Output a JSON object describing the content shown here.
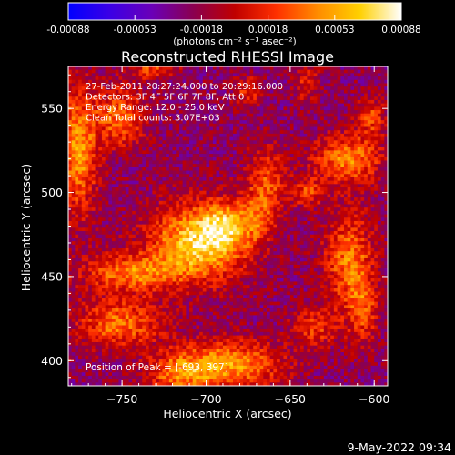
{
  "chart_data": {
    "type": "heatmap",
    "title": "Reconstructed RHESSI Image",
    "xlabel": "Heliocentric X (arcsec)",
    "ylabel": "Heliocentric Y (arcsec)",
    "xlim": [
      -782,
      -592
    ],
    "ylim": [
      385,
      575
    ],
    "x_ticks": [
      -750,
      -700,
      -650,
      -600
    ],
    "y_ticks": [
      400,
      450,
      500,
      550
    ],
    "colorbar": {
      "range": [
        -0.00088,
        0.00088
      ],
      "ticks": [
        "-0.00088",
        "-0.00053",
        "-0.00018",
        "0.00018",
        "0.00053",
        "0.00088"
      ],
      "unit_label": "(photons cm⁻² s⁻¹ asec⁻²)"
    },
    "annotations": [
      "27-Feb-2011 20:27:24.000 to 20:29:16.000",
      "Detectors: 3F 4F 5F 6F 7F 8F, Att 0",
      "Energy Range: 12.0 - 25.0 keV",
      "Clean     Total counts: 3.07E+03"
    ],
    "peak_label": "Position of Peak = [-693, 397]",
    "colormap": [
      "#0000ff",
      "#3b00e6",
      "#6a00b8",
      "#8a0050",
      "#c00000",
      "#ff3000",
      "#ff8c00",
      "#ffd000",
      "#ffffff"
    ],
    "sources": [
      {
        "x": -705,
        "y": 470,
        "sx": 20,
        "sy": 16,
        "amp": 0.00088
      },
      {
        "x": -690,
        "y": 480,
        "sx": 10,
        "sy": 10,
        "amp": 0.0005
      },
      {
        "x": -745,
        "y": 452,
        "sx": 20,
        "sy": 8,
        "amp": 0.0006
      },
      {
        "x": -752,
        "y": 422,
        "sx": 18,
        "sy": 10,
        "amp": 0.00058
      },
      {
        "x": -688,
        "y": 397,
        "sx": 22,
        "sy": 10,
        "amp": 0.00075
      },
      {
        "x": -717,
        "y": 392,
        "sx": 12,
        "sy": 8,
        "amp": 0.00045
      },
      {
        "x": -751,
        "y": 545,
        "sx": 10,
        "sy": 12,
        "amp": 0.0006
      },
      {
        "x": -776,
        "y": 525,
        "sx": 8,
        "sy": 26,
        "amp": 0.0007
      },
      {
        "x": -664,
        "y": 508,
        "sx": 8,
        "sy": 14,
        "amp": 0.00045
      },
      {
        "x": -670,
        "y": 485,
        "sx": 8,
        "sy": 10,
        "amp": 0.0004
      },
      {
        "x": -616,
        "y": 520,
        "sx": 14,
        "sy": 10,
        "amp": 0.00065
      },
      {
        "x": -602,
        "y": 545,
        "sx": 6,
        "sy": 8,
        "amp": 0.00045
      },
      {
        "x": -640,
        "y": 500,
        "sx": 8,
        "sy": 6,
        "amp": 0.0004
      },
      {
        "x": -615,
        "y": 460,
        "sx": 10,
        "sy": 20,
        "amp": 0.0006
      },
      {
        "x": -607,
        "y": 430,
        "sx": 6,
        "sy": 14,
        "amp": 0.00045
      },
      {
        "x": -635,
        "y": 420,
        "sx": 10,
        "sy": 8,
        "amp": 0.0004
      },
      {
        "x": -675,
        "y": 560,
        "sx": 6,
        "sy": 6,
        "amp": 0.0004
      },
      {
        "x": -732,
        "y": 573,
        "sx": 10,
        "sy": 4,
        "amp": 0.00045
      },
      {
        "x": -640,
        "y": 565,
        "sx": 5,
        "sy": 8,
        "amp": 0.00035
      }
    ],
    "background_level": -0.00022,
    "noise_amplitude": 0.0002
  },
  "footer": {
    "timestamp": "9-May-2022 09:34"
  }
}
